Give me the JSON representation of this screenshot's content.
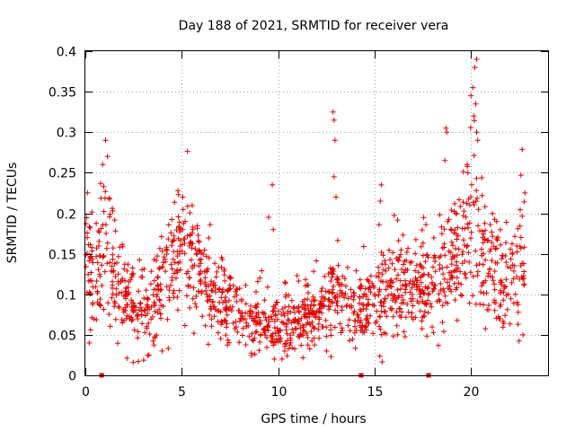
{
  "chart_data": {
    "type": "scatter",
    "title": "Day 188 of 2021, SRMTID for receiver vera",
    "xlabel": "GPS time / hours",
    "ylabel": "SRMTID / TECUs",
    "xlim": [
      0,
      24
    ],
    "ylim": [
      0,
      0.4
    ],
    "x_ticks": [
      0,
      5,
      10,
      15,
      20
    ],
    "x_tick_labels": [
      "0",
      "5",
      "10",
      "15",
      "20"
    ],
    "y_ticks": [
      0,
      0.05,
      0.1,
      0.15,
      0.2,
      0.25,
      0.3,
      0.35,
      0.4
    ],
    "y_tick_labels": [
      "0",
      "0.05",
      "0.1",
      "0.15",
      "0.2",
      "0.25",
      "0.3",
      "0.35",
      "0.4"
    ],
    "grid": true,
    "marker": "+",
    "color": "#e00000",
    "gap_markers_x": [
      0.85,
      14.3,
      17.8
    ],
    "profile": [
      {
        "x": 0.0,
        "y": 0.13
      },
      {
        "x": 0.5,
        "y": 0.12
      },
      {
        "x": 1.0,
        "y": 0.16
      },
      {
        "x": 1.5,
        "y": 0.12
      },
      {
        "x": 2.0,
        "y": 0.09
      },
      {
        "x": 2.5,
        "y": 0.085
      },
      {
        "x": 3.0,
        "y": 0.08
      },
      {
        "x": 3.5,
        "y": 0.085
      },
      {
        "x": 4.0,
        "y": 0.11
      },
      {
        "x": 4.5,
        "y": 0.14
      },
      {
        "x": 5.0,
        "y": 0.15
      },
      {
        "x": 5.5,
        "y": 0.14
      },
      {
        "x": 6.0,
        "y": 0.12
      },
      {
        "x": 6.5,
        "y": 0.11
      },
      {
        "x": 7.0,
        "y": 0.095
      },
      {
        "x": 7.5,
        "y": 0.085
      },
      {
        "x": 8.0,
        "y": 0.07
      },
      {
        "x": 8.5,
        "y": 0.065
      },
      {
        "x": 9.0,
        "y": 0.08
      },
      {
        "x": 9.5,
        "y": 0.06
      },
      {
        "x": 10.0,
        "y": 0.055
      },
      {
        "x": 10.5,
        "y": 0.06
      },
      {
        "x": 11.0,
        "y": 0.07
      },
      {
        "x": 11.5,
        "y": 0.075
      },
      {
        "x": 12.0,
        "y": 0.075
      },
      {
        "x": 12.5,
        "y": 0.09
      },
      {
        "x": 13.0,
        "y": 0.1
      },
      {
        "x": 13.5,
        "y": 0.085
      },
      {
        "x": 14.0,
        "y": 0.08
      },
      {
        "x": 14.5,
        "y": 0.09
      },
      {
        "x": 15.0,
        "y": 0.1
      },
      {
        "x": 15.5,
        "y": 0.1
      },
      {
        "x": 16.0,
        "y": 0.11
      },
      {
        "x": 16.5,
        "y": 0.1
      },
      {
        "x": 17.0,
        "y": 0.1
      },
      {
        "x": 17.5,
        "y": 0.1
      },
      {
        "x": 18.0,
        "y": 0.1
      },
      {
        "x": 18.5,
        "y": 0.12
      },
      {
        "x": 19.0,
        "y": 0.14
      },
      {
        "x": 19.5,
        "y": 0.17
      },
      {
        "x": 20.0,
        "y": 0.19
      },
      {
        "x": 20.5,
        "y": 0.16
      },
      {
        "x": 21.0,
        "y": 0.13
      },
      {
        "x": 21.5,
        "y": 0.11
      },
      {
        "x": 22.0,
        "y": 0.12
      },
      {
        "x": 22.5,
        "y": 0.14
      },
      {
        "x": 22.8,
        "y": 0.14
      }
    ],
    "highlighted_points": [
      {
        "x": 0.1,
        "y": 0.17
      },
      {
        "x": 0.2,
        "y": 0.04
      },
      {
        "x": 1.05,
        "y": 0.29
      },
      {
        "x": 1.15,
        "y": 0.27
      },
      {
        "x": 0.9,
        "y": 0.26
      },
      {
        "x": 5.05,
        "y": 0.22
      },
      {
        "x": 9.7,
        "y": 0.235
      },
      {
        "x": 9.5,
        "y": 0.195
      },
      {
        "x": 9.75,
        "y": 0.18
      },
      {
        "x": 12.85,
        "y": 0.325
      },
      {
        "x": 12.9,
        "y": 0.315
      },
      {
        "x": 12.95,
        "y": 0.29
      },
      {
        "x": 12.9,
        "y": 0.245
      },
      {
        "x": 13.0,
        "y": 0.22
      },
      {
        "x": 15.35,
        "y": 0.235
      },
      {
        "x": 15.3,
        "y": 0.215
      },
      {
        "x": 18.7,
        "y": 0.305
      },
      {
        "x": 18.75,
        "y": 0.3
      },
      {
        "x": 18.65,
        "y": 0.265
      },
      {
        "x": 20.3,
        "y": 0.39
      },
      {
        "x": 20.2,
        "y": 0.38
      },
      {
        "x": 20.1,
        "y": 0.355
      },
      {
        "x": 20.0,
        "y": 0.345
      },
      {
        "x": 20.25,
        "y": 0.335
      },
      {
        "x": 20.15,
        "y": 0.32
      },
      {
        "x": 20.3,
        "y": 0.3
      },
      {
        "x": 20.35,
        "y": 0.29
      },
      {
        "x": 19.8,
        "y": 0.26
      },
      {
        "x": 22.8,
        "y": 0.225
      },
      {
        "x": 22.7,
        "y": 0.05
      },
      {
        "x": 9.8,
        "y": 0.02
      },
      {
        "x": 10.2,
        "y": 0.02
      },
      {
        "x": 3.3,
        "y": 0.025
      }
    ]
  }
}
